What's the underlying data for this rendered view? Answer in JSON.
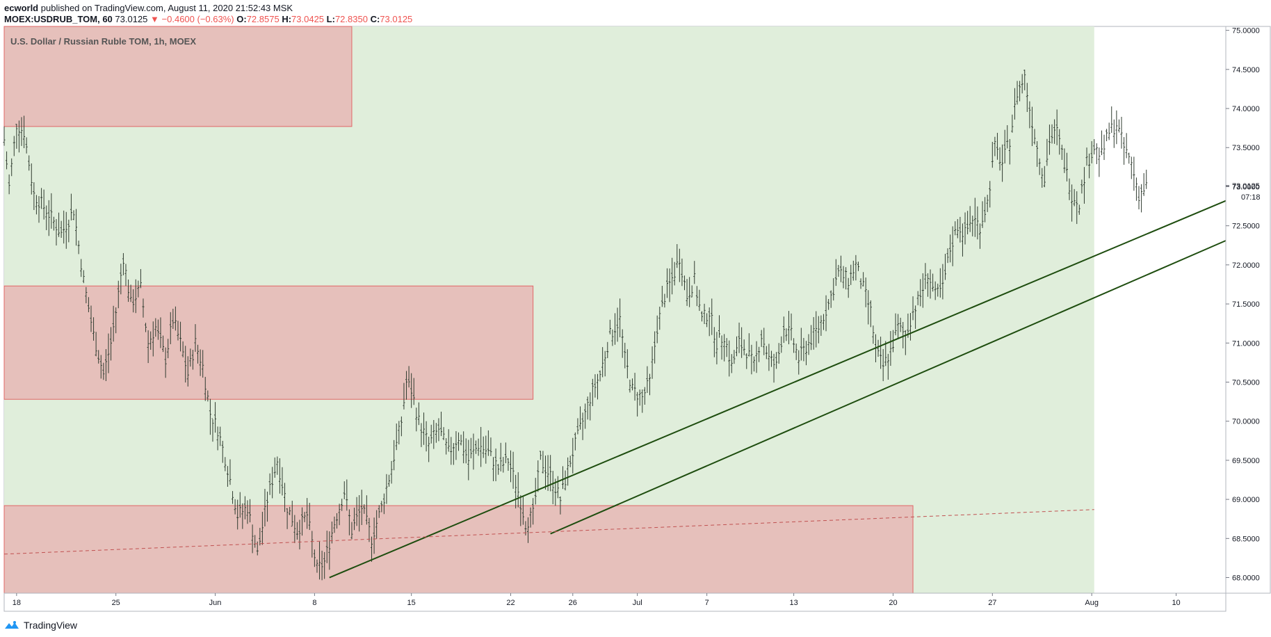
{
  "header": {
    "author": "ecworld",
    "published_text": "published on TradingView.com, August 11, 2020 21:52:43 MSK",
    "symbol": "MOEX:USDRUB_TOM, 60",
    "last": "73.0125",
    "change": "▼ −0.4600 (−0.63%)",
    "open_label": "O:",
    "open": "72.8575",
    "high_label": "H:",
    "high": "73.0425",
    "low_label": "L:",
    "low": "72.8350",
    "close_label": "C:",
    "close": "73.0125"
  },
  "chart_title": "U.S. Dollar / Russian Ruble TOM, 1h, MOEX",
  "footer": {
    "brand": "TradingView"
  },
  "colors": {
    "green_zone": "#e0eedb",
    "red_zone": "#e6c0bb",
    "red_zone_border": "#e06666",
    "candle": "#2f3b2f",
    "trendline": "#1e4d0f",
    "dashed": "#c05050",
    "axis": "#787b86"
  },
  "chart_data": {
    "type": "bar",
    "title": "U.S. Dollar / Russian Ruble TOM, 1h, MOEX",
    "ylim": [
      67.8,
      75.05
    ],
    "y_ticks": [
      "75.0000",
      "74.5000",
      "74.0000",
      "73.5000",
      "73.0000",
      "72.5000",
      "72.0000",
      "71.5000",
      "71.0000",
      "70.5000",
      "70.0000",
      "69.5000",
      "69.0000",
      "68.5000",
      "68.0000"
    ],
    "x_ticks": [
      "18",
      "25",
      "Jun",
      "8",
      "15",
      "22",
      "26",
      "Jul",
      "7",
      "13",
      "20",
      "27",
      "Aug",
      "10"
    ],
    "last_price_label": "73.0125",
    "countdown_label": "07:18",
    "price_path": [
      [
        0,
        73.6
      ],
      [
        2,
        73.0
      ],
      [
        5,
        73.8
      ],
      [
        8,
        73.7
      ],
      [
        12,
        72.9
      ],
      [
        17,
        72.7
      ],
      [
        23,
        72.4
      ],
      [
        28,
        72.7
      ],
      [
        32,
        71.8
      ],
      [
        36,
        71.1
      ],
      [
        40,
        70.6
      ],
      [
        43,
        71.0
      ],
      [
        45,
        71.4
      ],
      [
        48,
        72.1
      ],
      [
        51,
        71.5
      ],
      [
        55,
        71.7
      ],
      [
        58,
        71.0
      ],
      [
        61,
        71.2
      ],
      [
        65,
        70.8
      ],
      [
        68,
        71.3
      ],
      [
        71,
        71.0
      ],
      [
        74,
        70.6
      ],
      [
        77,
        71.0
      ],
      [
        80,
        70.7
      ],
      [
        83,
        70.1
      ],
      [
        86,
        69.9
      ],
      [
        90,
        69.4
      ],
      [
        94,
        68.8
      ],
      [
        98,
        68.9
      ],
      [
        102,
        68.3
      ],
      [
        106,
        69.0
      ],
      [
        110,
        69.5
      ],
      [
        114,
        68.9
      ],
      [
        118,
        68.6
      ],
      [
        122,
        68.8
      ],
      [
        126,
        68.1
      ],
      [
        129,
        68.2
      ],
      [
        133,
        68.7
      ],
      [
        137,
        69.1
      ],
      [
        140,
        68.6
      ],
      [
        144,
        68.9
      ],
      [
        148,
        68.5
      ],
      [
        152,
        68.9
      ],
      [
        156,
        69.4
      ],
      [
        160,
        70.0
      ],
      [
        162,
        70.5
      ],
      [
        164,
        70.4
      ],
      [
        167,
        70.0
      ],
      [
        171,
        69.7
      ],
      [
        175,
        69.9
      ],
      [
        179,
        69.6
      ],
      [
        183,
        69.8
      ],
      [
        187,
        69.5
      ],
      [
        191,
        69.7
      ],
      [
        195,
        69.6
      ],
      [
        199,
        69.4
      ],
      [
        203,
        69.5
      ],
      [
        207,
        69.1
      ],
      [
        210,
        68.7
      ],
      [
        213,
        68.8
      ],
      [
        216,
        69.5
      ],
      [
        220,
        69.3
      ],
      [
        224,
        69.0
      ],
      [
        228,
        69.5
      ],
      [
        232,
        69.9
      ],
      [
        236,
        70.3
      ],
      [
        240,
        70.6
      ],
      [
        244,
        71.1
      ],
      [
        248,
        71.3
      ],
      [
        250,
        70.8
      ],
      [
        253,
        70.4
      ],
      [
        257,
        70.3
      ],
      [
        260,
        70.5
      ],
      [
        263,
        71.2
      ],
      [
        266,
        71.6
      ],
      [
        270,
        71.9
      ],
      [
        272,
        72.1
      ],
      [
        275,
        71.6
      ],
      [
        278,
        71.8
      ],
      [
        281,
        71.3
      ],
      [
        284,
        71.4
      ],
      [
        287,
        71.0
      ],
      [
        290,
        71.1
      ],
      [
        293,
        70.7
      ],
      [
        296,
        71.0
      ],
      [
        299,
        70.9
      ],
      [
        302,
        70.7
      ],
      [
        305,
        71.1
      ],
      [
        308,
        70.8
      ],
      [
        311,
        70.7
      ],
      [
        314,
        71.2
      ],
      [
        317,
        71.1
      ],
      [
        320,
        70.8
      ],
      [
        324,
        71.0
      ],
      [
        328,
        71.2
      ],
      [
        332,
        71.5
      ],
      [
        336,
        71.9
      ],
      [
        340,
        71.8
      ],
      [
        343,
        72.0
      ],
      [
        346,
        71.7
      ],
      [
        349,
        71.4
      ],
      [
        351,
        70.9
      ],
      [
        354,
        70.7
      ],
      [
        357,
        70.9
      ],
      [
        360,
        71.2
      ],
      [
        363,
        71.1
      ],
      [
        366,
        71.4
      ],
      [
        369,
        71.6
      ],
      [
        372,
        71.9
      ],
      [
        375,
        71.6
      ],
      [
        378,
        71.7
      ],
      [
        381,
        72.2
      ],
      [
        384,
        72.5
      ],
      [
        387,
        72.4
      ],
      [
        390,
        72.6
      ],
      [
        393,
        72.5
      ],
      [
        396,
        72.8
      ],
      [
        399,
        73.5
      ],
      [
        402,
        73.3
      ],
      [
        405,
        73.6
      ],
      [
        408,
        74.2
      ],
      [
        411,
        74.4
      ],
      [
        413,
        74.0
      ],
      [
        416,
        73.5
      ],
      [
        419,
        73.1
      ],
      [
        421,
        73.6
      ],
      [
        424,
        73.7
      ],
      [
        427,
        73.3
      ],
      [
        430,
        72.9
      ],
      [
        433,
        72.8
      ],
      [
        436,
        73.3
      ],
      [
        439,
        73.5
      ],
      [
        442,
        73.4
      ],
      [
        445,
        73.7
      ],
      [
        448,
        73.8
      ],
      [
        451,
        73.5
      ],
      [
        454,
        73.3
      ],
      [
        457,
        72.9
      ],
      [
        460,
        73.0
      ]
    ],
    "zones": [
      {
        "kind": "red",
        "x0": 0,
        "x1": 140,
        "y0": 73.77,
        "y1": 75.05
      },
      {
        "kind": "red",
        "x0": 0,
        "x1": 213,
        "y0": 70.28,
        "y1": 71.73
      },
      {
        "kind": "red",
        "x0": 0,
        "x1": 366,
        "y0": 67.8,
        "y1": 68.92
      },
      {
        "kind": "green",
        "x0": 0,
        "x1": 439,
        "y0": 67.8,
        "y1": 75.05
      }
    ],
    "trendlines": [
      {
        "style": "solid",
        "p1": [
          131,
          68.0
        ],
        "p2": [
          492,
          72.82
        ]
      },
      {
        "style": "solid",
        "p1": [
          220,
          68.56
        ],
        "p2": [
          492,
          72.31
        ]
      },
      {
        "style": "dashed",
        "p1": [
          0,
          68.3
        ],
        "p2": [
          439,
          68.87
        ]
      }
    ]
  }
}
